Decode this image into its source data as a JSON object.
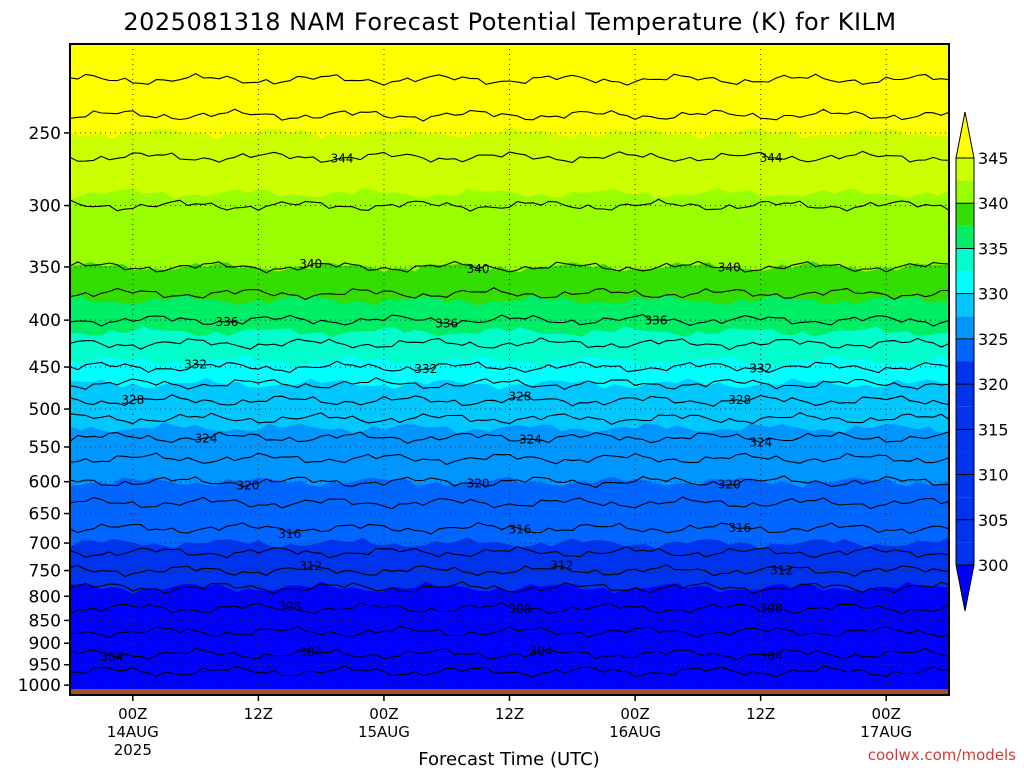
{
  "chart_data": {
    "type": "heatmap",
    "title": "2025081318 NAM Forecast Potential Temperature (K) for KILM",
    "xlabel": "Forecast Time (UTC)",
    "ylabel": "",
    "credit": "coolwx.com/models",
    "y_scale": "log-pressure",
    "y_unit": "hPa",
    "ylim": [
      1025,
      200
    ],
    "y_ticks": [
      250,
      300,
      350,
      400,
      450,
      500,
      550,
      600,
      650,
      700,
      750,
      800,
      850,
      900,
      950,
      1000
    ],
    "x_ticks": [
      {
        "label": "00Z",
        "sub": [
          "14AUG",
          "2025"
        ],
        "hour": 6
      },
      {
        "label": "12Z",
        "sub": [],
        "hour": 18
      },
      {
        "label": "00Z",
        "sub": [
          "15AUG"
        ],
        "hour": 30
      },
      {
        "label": "12Z",
        "sub": [],
        "hour": 42
      },
      {
        "label": "00Z",
        "sub": [
          "16AUG"
        ],
        "hour": 54
      },
      {
        "label": "12Z",
        "sub": [],
        "hour": 66
      },
      {
        "label": "00Z",
        "sub": [
          "17AUG"
        ],
        "hour": 78
      }
    ],
    "xlim_hours": [
      0,
      84
    ],
    "grid": true,
    "colorbar": {
      "ticks": [
        345,
        340,
        335,
        330,
        325,
        320,
        315,
        310,
        305,
        300
      ],
      "colors": [
        "#ffff00",
        "#ccff00",
        "#99ff00",
        "#33dd00",
        "#00ee66",
        "#00ffcc",
        "#00ffff",
        "#00c8ff",
        "#0096ff",
        "#0066ff",
        "#0033ee",
        "#0000ff"
      ]
    },
    "profile": {
      "pressure": [
        1000,
        950,
        900,
        850,
        800,
        750,
        700,
        650,
        600,
        550,
        500,
        450,
        400,
        350,
        300,
        250,
        200
      ],
      "theta": [
        300,
        303,
        305,
        307,
        309,
        312,
        315,
        317,
        320,
        323,
        327,
        332,
        336,
        340,
        342,
        345,
        350
      ]
    },
    "contour_labels": [
      {
        "value": "344",
        "hour": 26
      },
      {
        "value": "344",
        "hour": 67
      },
      {
        "value": "340",
        "hour": 23
      },
      {
        "value": "340",
        "hour": 39
      },
      {
        "value": "340",
        "hour": 63
      },
      {
        "value": "336",
        "hour": 15
      },
      {
        "value": "336",
        "hour": 36
      },
      {
        "value": "336",
        "hour": 56
      },
      {
        "value": "332",
        "hour": 12
      },
      {
        "value": "332",
        "hour": 34
      },
      {
        "value": "332",
        "hour": 66
      },
      {
        "value": "328",
        "hour": 6
      },
      {
        "value": "328",
        "hour": 43
      },
      {
        "value": "328",
        "hour": 64
      },
      {
        "value": "324",
        "hour": 13
      },
      {
        "value": "324",
        "hour": 44
      },
      {
        "value": "324",
        "hour": 66
      },
      {
        "value": "320",
        "hour": 17
      },
      {
        "value": "320",
        "hour": 39
      },
      {
        "value": "320",
        "hour": 63
      },
      {
        "value": "316",
        "hour": 21
      },
      {
        "value": "316",
        "hour": 43
      },
      {
        "value": "316",
        "hour": 64
      },
      {
        "value": "312",
        "hour": 23
      },
      {
        "value": "312",
        "hour": 47
      },
      {
        "value": "312",
        "hour": 68
      },
      {
        "value": "308",
        "hour": 21
      },
      {
        "value": "308",
        "hour": 43
      },
      {
        "value": "308",
        "hour": 67
      },
      {
        "value": "304",
        "hour": 4
      },
      {
        "value": "304",
        "hour": 23
      },
      {
        "value": "304",
        "hour": 45
      },
      {
        "value": "304",
        "hour": 67
      }
    ]
  }
}
